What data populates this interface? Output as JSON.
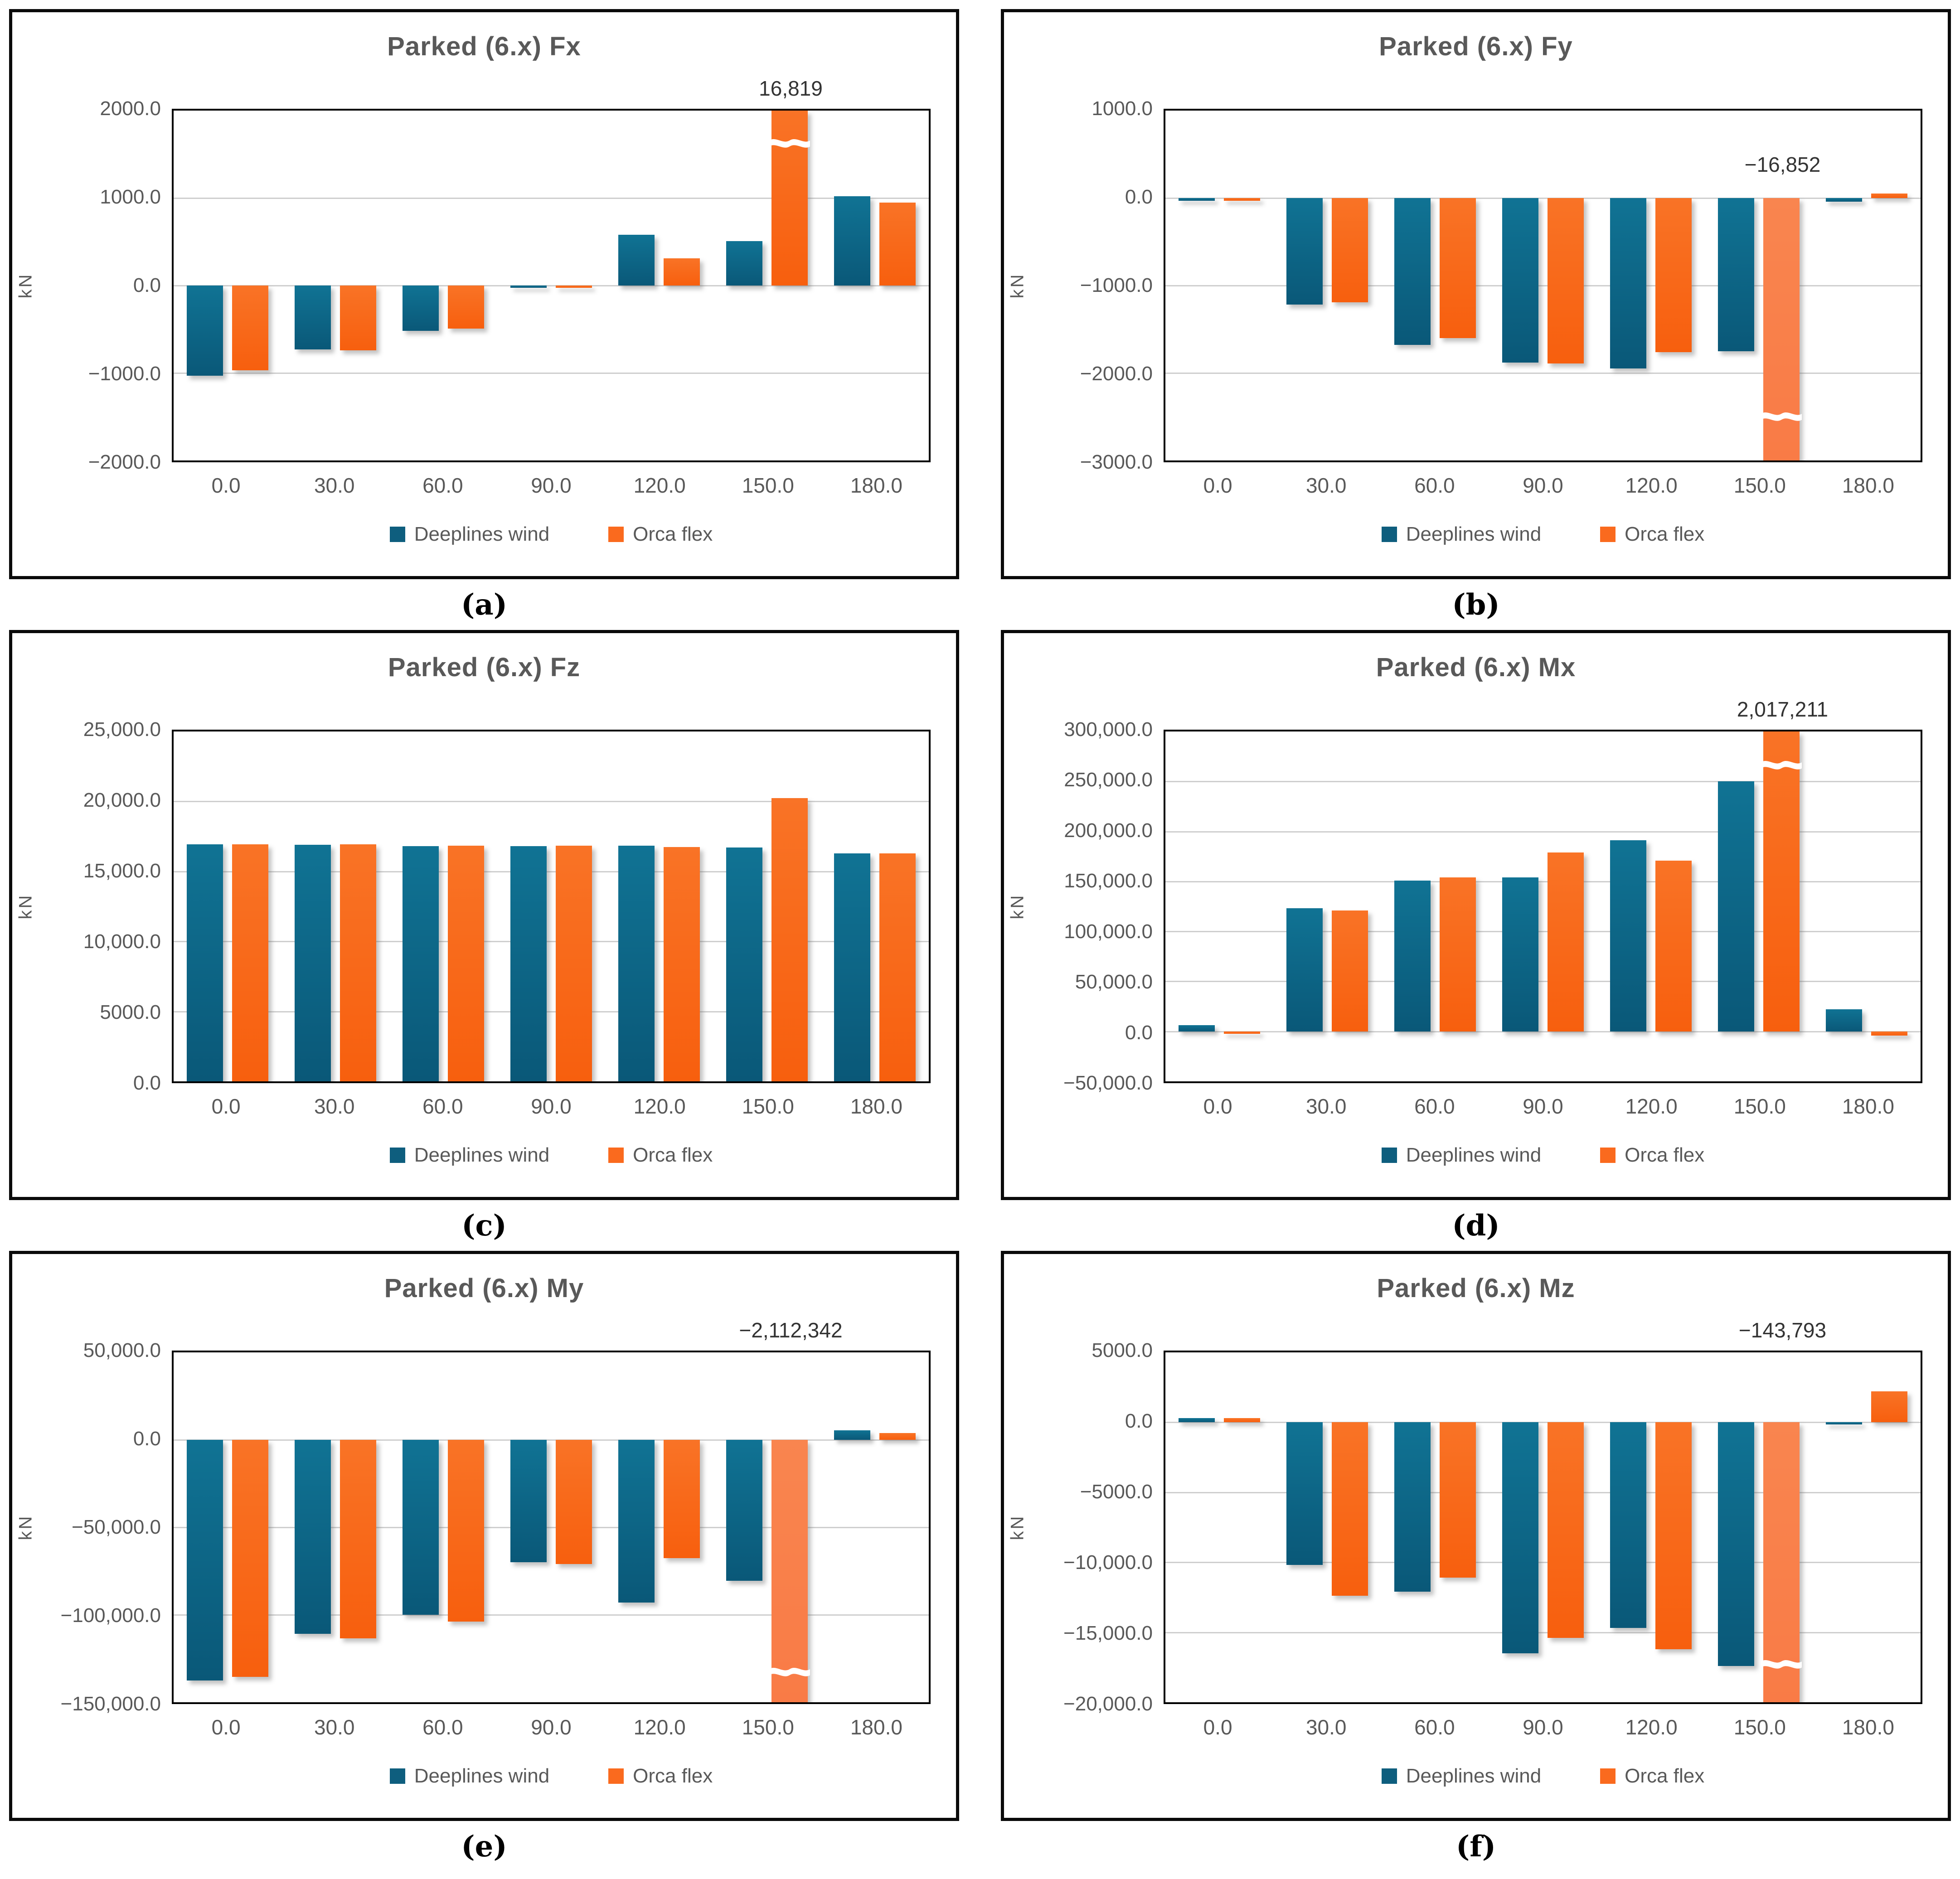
{
  "figure": {
    "unit_label": "kN",
    "legend": [
      {
        "name": "Deeplines wind",
        "color": "#0E5E7E"
      },
      {
        "name": "Orca flex",
        "color": "#FA6A1E"
      }
    ],
    "colors": {
      "deeplines_top": "#107394",
      "deeplines_bottom": "#0A5878",
      "orca_top": "#F97326",
      "orca_bottom": "#F75F0E",
      "orca_light_top": "#F9854F",
      "orca_light_bottom": "#F97B46",
      "grid": "#CFCFCF",
      "title_text": "#595959",
      "tick_text": "#595959",
      "annotation_text": "#333333"
    }
  },
  "chart_data": [
    {
      "id": "fx",
      "type": "bar",
      "panel_label": "(a)",
      "title": "Parked (6.x) Fx",
      "ylabel": "kN",
      "categories": [
        "0.0",
        "30.0",
        "60.0",
        "90.0",
        "120.0",
        "150.0",
        "180.0"
      ],
      "ylim": [
        -2000,
        2000
      ],
      "grid": true,
      "legend_position": "bottom",
      "yticks": [
        {
          "v": 2000,
          "label": "2000.0"
        },
        {
          "v": 1000,
          "label": "1000.0"
        },
        {
          "v": 0,
          "label": "0.0"
        },
        {
          "v": -1000,
          "label": "−1000.0"
        },
        {
          "v": -2000,
          "label": "−2000.0"
        }
      ],
      "series": [
        {
          "name": "Deeplines wind",
          "values": [
            -1030,
            -730,
            -520,
            -20,
            580,
            510,
            1020
          ]
        },
        {
          "name": "Orca flex",
          "values": [
            -970,
            -740,
            -490,
            -20,
            310,
            16819,
            950
          ]
        }
      ],
      "broken_bar": {
        "category_index": 5,
        "series_index": 1,
        "break_at": 1620,
        "light": false
      },
      "annotation": {
        "text": "16,819",
        "category_index": 5,
        "series_index": 1,
        "placement": "above_plot"
      }
    },
    {
      "id": "fy",
      "type": "bar",
      "panel_label": "(b)",
      "title": "Parked (6.x) Fy",
      "ylabel": "kN",
      "categories": [
        "0.0",
        "30.0",
        "60.0",
        "90.0",
        "120.0",
        "150.0",
        "180.0"
      ],
      "ylim": [
        -3000,
        1000
      ],
      "grid": true,
      "legend_position": "bottom",
      "yticks": [
        {
          "v": 1000,
          "label": "1000.0"
        },
        {
          "v": 0,
          "label": "0.0"
        },
        {
          "v": -1000,
          "label": "−1000.0"
        },
        {
          "v": -2000,
          "label": "−2000.0"
        },
        {
          "v": -3000,
          "label": "−3000.0"
        }
      ],
      "series": [
        {
          "name": "Deeplines wind",
          "values": [
            -30,
            -1220,
            -1680,
            -1880,
            -1950,
            -1750,
            -40
          ]
        },
        {
          "name": "Orca flex",
          "values": [
            -30,
            -1190,
            -1600,
            -1890,
            -1760,
            -16852,
            50
          ]
        }
      ],
      "broken_bar": {
        "category_index": 5,
        "series_index": 1,
        "break_at": -2500,
        "light": true
      },
      "annotation": {
        "text": "−16,852",
        "category_index": 5,
        "series_index": 1,
        "placement": "in_plot"
      }
    },
    {
      "id": "fz",
      "type": "bar",
      "panel_label": "(c)",
      "title": "Parked (6.x) Fz",
      "ylabel": "kN",
      "categories": [
        "0.0",
        "30.0",
        "60.0",
        "90.0",
        "120.0",
        "150.0",
        "180.0"
      ],
      "ylim": [
        0,
        25000
      ],
      "grid": true,
      "legend_position": "bottom",
      "yticks": [
        {
          "v": 25000,
          "label": "25,000.0"
        },
        {
          "v": 20000,
          "label": "20,000.0"
        },
        {
          "v": 15000,
          "label": "15,000.0"
        },
        {
          "v": 10000,
          "label": "10,000.0"
        },
        {
          "v": 5000,
          "label": "5000.0"
        },
        {
          "v": 0,
          "label": "0.0"
        }
      ],
      "series": [
        {
          "name": "Deeplines wind",
          "values": [
            16950,
            16900,
            16800,
            16800,
            16850,
            16700,
            16300
          ]
        },
        {
          "name": "Orca flex",
          "values": [
            16950,
            16950,
            16850,
            16850,
            16750,
            20250,
            16300
          ]
        }
      ],
      "broken_bar": null,
      "annotation": null
    },
    {
      "id": "mx",
      "type": "bar",
      "panel_label": "(d)",
      "title": "Parked (6.x) Mx",
      "ylabel": "kN",
      "categories": [
        "0.0",
        "30.0",
        "60.0",
        "90.0",
        "120.0",
        "150.0",
        "180.0"
      ],
      "ylim": [
        -50000,
        300000
      ],
      "grid": true,
      "legend_position": "bottom",
      "yticks": [
        {
          "v": 300000,
          "label": "300,000.0"
        },
        {
          "v": 250000,
          "label": "250,000.0"
        },
        {
          "v": 200000,
          "label": "200,000.0"
        },
        {
          "v": 150000,
          "label": "150,000.0"
        },
        {
          "v": 100000,
          "label": "100,000.0"
        },
        {
          "v": 50000,
          "label": "50,000.0"
        },
        {
          "v": 0,
          "label": "0.0"
        },
        {
          "v": -50000,
          "label": "−50,000.0"
        }
      ],
      "series": [
        {
          "name": "Deeplines wind",
          "values": [
            6000,
            123000,
            151000,
            154000,
            191000,
            250000,
            22000
          ]
        },
        {
          "name": "Orca flex",
          "values": [
            -1500,
            121000,
            154000,
            179000,
            171000,
            2017211,
            -4000
          ]
        }
      ],
      "broken_bar": {
        "category_index": 5,
        "series_index": 1,
        "break_at": 266000,
        "light": false
      },
      "annotation": {
        "text": "2,017,211",
        "category_index": 5,
        "series_index": 1,
        "placement": "above_plot"
      }
    },
    {
      "id": "my",
      "type": "bar",
      "panel_label": "(e)",
      "title": "Parked (6.x) My",
      "ylabel": "kN",
      "categories": [
        "0.0",
        "30.0",
        "60.0",
        "90.0",
        "120.0",
        "150.0",
        "180.0"
      ],
      "ylim": [
        -150000,
        50000
      ],
      "grid": true,
      "legend_position": "bottom",
      "yticks": [
        {
          "v": 50000,
          "label": "50,000.0"
        },
        {
          "v": 0,
          "label": "0.0"
        },
        {
          "v": -50000,
          "label": "−50,000.0"
        },
        {
          "v": -100000,
          "label": "−100,000.0"
        },
        {
          "v": -150000,
          "label": "−150,000.0"
        }
      ],
      "series": [
        {
          "name": "Deeplines wind",
          "values": [
            -137500,
            -111000,
            -100000,
            -70000,
            -93000,
            -80500,
            5500
          ]
        },
        {
          "name": "Orca flex",
          "values": [
            -135500,
            -113500,
            -104000,
            -71000,
            -67500,
            -2112342,
            4000
          ]
        }
      ],
      "broken_bar": {
        "category_index": 5,
        "series_index": 1,
        "break_at": -133000,
        "light": true
      },
      "annotation": {
        "text": "−2,112,342",
        "category_index": 5,
        "series_index": 1,
        "placement": "above_plot"
      }
    },
    {
      "id": "mz",
      "type": "bar",
      "panel_label": "(f)",
      "title": "Parked (6.x) Mz",
      "ylabel": "kN",
      "categories": [
        "0.0",
        "30.0",
        "60.0",
        "90.0",
        "120.0",
        "150.0",
        "180.0"
      ],
      "ylim": [
        -20000,
        5000
      ],
      "grid": true,
      "legend_position": "bottom",
      "yticks": [
        {
          "v": 5000,
          "label": "5000.0"
        },
        {
          "v": 0,
          "label": "0.0"
        },
        {
          "v": -5000,
          "label": "−5000.0"
        },
        {
          "v": -10000,
          "label": "−10,000.0"
        },
        {
          "v": -15000,
          "label": "−15,000.0"
        },
        {
          "v": -20000,
          "label": "−20,000.0"
        }
      ],
      "series": [
        {
          "name": "Deeplines wind",
          "values": [
            300,
            -10200,
            -12100,
            -16500,
            -14700,
            -17400,
            -100
          ]
        },
        {
          "name": "Orca flex",
          "values": [
            300,
            -12400,
            -11100,
            -15400,
            -16200,
            -143793,
            2200
          ]
        }
      ],
      "broken_bar": {
        "category_index": 5,
        "series_index": 1,
        "break_at": -17300,
        "light": true
      },
      "annotation": {
        "text": "−143,793",
        "category_index": 5,
        "series_index": 1,
        "placement": "above_plot"
      }
    }
  ]
}
